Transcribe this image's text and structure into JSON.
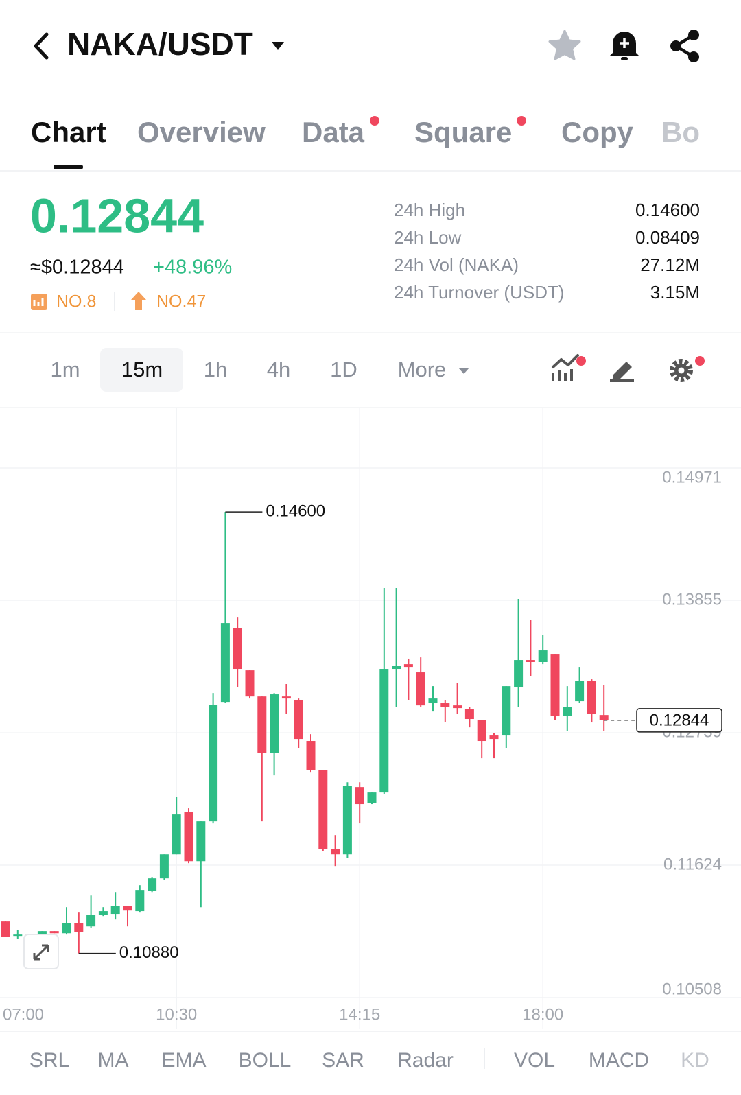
{
  "header": {
    "pair": "NAKA/USDT"
  },
  "tabs": [
    "Chart",
    "Overview",
    "Data",
    "Square",
    "Copy",
    "Bo"
  ],
  "price": {
    "last": "0.12844",
    "usd": "≈$0.12844",
    "change": "+48.96%",
    "rank_hot": "NO.8",
    "rank_gain": "NO.47"
  },
  "stats": [
    {
      "label": "24h High",
      "value": "0.14600"
    },
    {
      "label": "24h Low",
      "value": "0.08409"
    },
    {
      "label": "24h Vol (NAKA)",
      "value": "27.12M"
    },
    {
      "label": "24h Turnover (USDT)",
      "value": "3.15M"
    }
  ],
  "intervals": [
    "1m",
    "15m",
    "1h",
    "4h",
    "1D",
    "More"
  ],
  "chart_data": {
    "type": "candlestick",
    "x": [
      "07:00",
      "07:15",
      "07:30",
      "07:45",
      "08:00",
      "08:15",
      "08:30",
      "08:45",
      "09:00",
      "09:15",
      "09:30",
      "09:45",
      "10:00",
      "10:15",
      "10:30",
      "10:45",
      "11:00",
      "11:15",
      "11:30",
      "11:45",
      "12:00",
      "12:15",
      "12:30",
      "12:45",
      "13:00",
      "13:15",
      "13:30",
      "13:45",
      "14:00",
      "14:15",
      "14:30",
      "14:45",
      "15:00",
      "15:15",
      "15:30",
      "15:45",
      "16:00",
      "16:15",
      "16:30",
      "16:45",
      "17:00",
      "17:15",
      "17:30",
      "17:45",
      "18:00",
      "18:15",
      "18:30",
      "18:45",
      "19:00",
      "19:15"
    ],
    "open": [
      0.11149,
      0.11039,
      0.11039,
      0.10992,
      0.11068,
      0.1105,
      0.11137,
      0.11108,
      0.11207,
      0.11213,
      0.11282,
      0.11236,
      0.11409,
      0.11513,
      0.11715,
      0.12074,
      0.11657,
      0.11993,
      0.12999,
      0.13624,
      0.13265,
      0.13045,
      0.12571,
      0.13045,
      0.13017,
      0.1267,
      0.12427,
      0.11762,
      0.11715,
      0.12282,
      0.12149,
      0.12236,
      0.13277,
      0.13317,
      0.13248,
      0.12988,
      0.12988,
      0.1297,
      0.12941,
      0.12844,
      0.12716,
      0.12716,
      0.13121,
      0.13352,
      0.13335,
      0.13404,
      0.12884,
      0.13005,
      0.13178,
      0.12889
    ],
    "high": [
      0.11149,
      0.11079,
      0.11039,
      0.11068,
      0.11068,
      0.1127,
      0.11224,
      0.11368,
      0.1127,
      0.11397,
      0.11282,
      0.11455,
      0.11525,
      0.11715,
      0.12196,
      0.12103,
      0.11993,
      0.13074,
      0.146,
      0.1371,
      0.13265,
      0.13045,
      0.13074,
      0.1315,
      0.13028,
      0.12727,
      0.12427,
      0.11877,
      0.12322,
      0.12322,
      0.12236,
      0.13959,
      0.13959,
      0.13364,
      0.13375,
      0.13132,
      0.13017,
      0.13161,
      0.12959,
      0.12844,
      0.12739,
      0.13132,
      0.13867,
      0.13693,
      0.13566,
      0.13404,
      0.13132,
      0.13294,
      0.1319,
      0.13144
    ],
    "low": [
      0.11021,
      0.11004,
      0.10992,
      0.10992,
      0.1105,
      0.11039,
      0.1088,
      0.11097,
      0.11195,
      0.11166,
      0.11108,
      0.11224,
      0.11397,
      0.11502,
      0.11715,
      0.1164,
      0.1127,
      0.11976,
      0.12988,
      0.13121,
      0.13028,
      0.11993,
      0.1238,
      0.12901,
      0.12612,
      0.12409,
      0.11744,
      0.11617,
      0.11686,
      0.11976,
      0.12138,
      0.12219,
      0.12959,
      0.13017,
      0.12959,
      0.12918,
      0.12832,
      0.12901,
      0.12785,
      0.12525,
      0.12525,
      0.12612,
      0.12959,
      0.13219,
      0.13317,
      0.12844,
      0.12756,
      0.12988,
      0.12826,
      0.12756
    ],
    "close": [
      0.11021,
      0.11039,
      0.10992,
      0.11068,
      0.1105,
      0.11137,
      0.11062,
      0.11207,
      0.11236,
      0.11282,
      0.11241,
      0.11415,
      0.11513,
      0.11715,
      0.12051,
      0.11657,
      0.11993,
      0.12976,
      0.13664,
      0.13277,
      0.13045,
      0.12571,
      0.13063,
      0.13028,
      0.12687,
      0.12427,
      0.11762,
      0.11715,
      0.12294,
      0.12138,
      0.12236,
      0.13277,
      0.13306,
      0.13294,
      0.1297,
      0.13028,
      0.12959,
      0.12947,
      0.12855,
      0.1267,
      0.12687,
      0.13132,
      0.13352,
      0.13335,
      0.13433,
      0.12884,
      0.12959,
      0.13178,
      0.12901,
      0.12844
    ],
    "up_color": "#2ebd85",
    "down_color": "#f0475e",
    "ylim": [
      0.10508,
      0.14971
    ],
    "yticks": [
      0.10508,
      0.11624,
      0.12739,
      0.13855,
      0.14971
    ],
    "xticks": [
      "07:00",
      "10:30",
      "14:15",
      "18:00"
    ],
    "grid": true,
    "annotations": {
      "max": "0.14600",
      "min": "0.10880",
      "last": "0.12844"
    }
  },
  "indicators": [
    "SRL",
    "MA",
    "EMA",
    "BOLL",
    "SAR",
    "Radar",
    "VOL",
    "MACD",
    "KD"
  ]
}
